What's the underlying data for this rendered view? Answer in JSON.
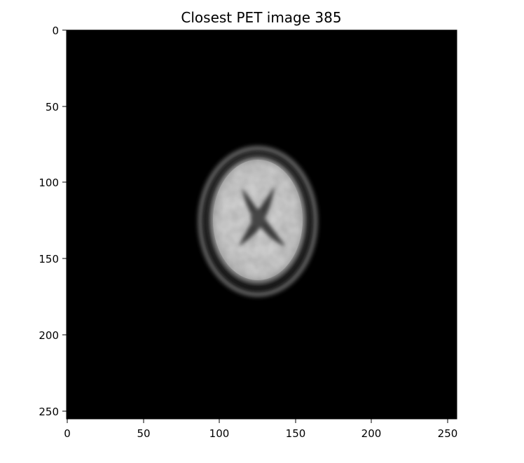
{
  "figure": {
    "title": "Closest PET image 385"
  },
  "axes": {
    "x_ticks": [
      "0",
      "50",
      "100",
      "150",
      "200",
      "250"
    ],
    "y_ticks": [
      "0",
      "50",
      "100",
      "150",
      "200",
      "250"
    ],
    "x_range": [
      0,
      256
    ],
    "y_range": [
      0,
      256
    ],
    "y_inverted": true
  },
  "image": {
    "content": "axial-brain-pet-slice",
    "colormap": "grayscale",
    "background_color": "#000000"
  }
}
